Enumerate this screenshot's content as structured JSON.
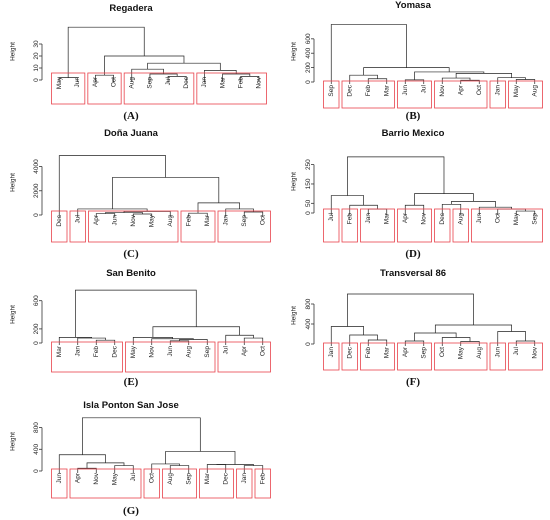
{
  "chart_data": [
    {
      "type": "dendrogram",
      "caption": "(A)",
      "title": "Regadera",
      "ylabel": "Height",
      "yticks": [
        0,
        10,
        20,
        30
      ],
      "ylim": [
        0,
        45
      ],
      "leaves": [
        "May",
        "Jun",
        "Apr",
        "Oct",
        "Aug",
        "Sep",
        "Jul",
        "Dec",
        "Jan",
        "Mar",
        "Feb",
        "Nov"
      ],
      "merges": [
        [
          0,
          1,
          2
        ],
        [
          2,
          3,
          4
        ],
        [
          6,
          7,
          3
        ],
        [
          5,
          -3,
          5
        ],
        [
          4,
          -4,
          9
        ],
        [
          10,
          11,
          3
        ],
        [
          9,
          -6,
          5
        ],
        [
          8,
          -7,
          8
        ],
        [
          -5,
          -8,
          14
        ],
        [
          -2,
          -9,
          20
        ],
        [
          -1,
          -10,
          44
        ]
      ],
      "clusters": [
        [
          0,
          1
        ],
        [
          2,
          3
        ],
        [
          4,
          7
        ],
        [
          8,
          11
        ]
      ]
    },
    {
      "type": "dendrogram",
      "caption": "(B)",
      "title": "Yomasa",
      "ylabel": "Height",
      "yticks": [
        0,
        200,
        400,
        600
      ],
      "ylim": [
        0,
        820
      ],
      "leaves": [
        "Sep",
        "Dec",
        "Feb",
        "Mar",
        "Jun",
        "Jul",
        "Nov",
        "Apr",
        "Oct",
        "Jan",
        "May",
        "Aug"
      ],
      "merges": [
        [
          2,
          3,
          45
        ],
        [
          1,
          -1,
          95
        ],
        [
          4,
          5,
          30
        ],
        [
          7,
          8,
          25
        ],
        [
          6,
          -4,
          55
        ],
        [
          10,
          11,
          35
        ],
        [
          9,
          -6,
          60
        ],
        [
          -5,
          -7,
          120
        ],
        [
          -3,
          -8,
          140
        ],
        [
          -2,
          -9,
          200
        ],
        [
          0,
          -10,
          800
        ]
      ],
      "clusters": [
        [
          0,
          0
        ],
        [
          1,
          3
        ],
        [
          4,
          5
        ],
        [
          6,
          8
        ],
        [
          9,
          9
        ],
        [
          10,
          11
        ]
      ]
    },
    {
      "type": "dendrogram",
      "caption": "(C)",
      "title": "Doña Juana",
      "ylabel": "Height",
      "yticks": [
        0,
        2000,
        4000
      ],
      "ylim": [
        0,
        5200
      ],
      "leaves": [
        "Dec",
        "Jul",
        "Apr",
        "Jun",
        "Nov",
        "May",
        "Aug",
        "Feb",
        "Mar",
        "Jan",
        "Sep",
        "Oct"
      ],
      "merges": [
        [
          2,
          3,
          120
        ],
        [
          4,
          5,
          80
        ],
        [
          -1,
          -2,
          200
        ],
        [
          -3,
          6,
          300
        ],
        [
          1,
          -4,
          500
        ],
        [
          7,
          8,
          150
        ],
        [
          10,
          11,
          250
        ],
        [
          9,
          -7,
          500
        ],
        [
          -6,
          -8,
          1000
        ],
        [
          -5,
          -9,
          3100
        ],
        [
          0,
          -10,
          4900
        ]
      ],
      "clusters": [
        [
          0,
          0
        ],
        [
          1,
          1
        ],
        [
          2,
          6
        ],
        [
          7,
          8
        ],
        [
          9,
          11
        ]
      ]
    },
    {
      "type": "dendrogram",
      "caption": "(D)",
      "title": "Barrio Mexico",
      "ylabel": "Height",
      "yticks": [
        0,
        50,
        150,
        250
      ],
      "ylim": [
        0,
        310
      ],
      "leaves": [
        "Jul",
        "Feb",
        "Jan",
        "Mar",
        "Apr",
        "Nov",
        "Dec",
        "Aug",
        "Jun",
        "Oct",
        "May",
        "Sep"
      ],
      "merges": [
        [
          2,
          3,
          20
        ],
        [
          1,
          -1,
          40
        ],
        [
          0,
          -2,
          90
        ],
        [
          4,
          5,
          40
        ],
        [
          6,
          7,
          45
        ],
        [
          10,
          11,
          10
        ],
        [
          9,
          -6,
          20
        ],
        [
          8,
          -7,
          30
        ],
        [
          -5,
          -8,
          60
        ],
        [
          -4,
          -9,
          100
        ],
        [
          -3,
          -10,
          290
        ]
      ],
      "clusters": [
        [
          0,
          0
        ],
        [
          1,
          1
        ],
        [
          2,
          3
        ],
        [
          4,
          5
        ],
        [
          6,
          6
        ],
        [
          7,
          7
        ],
        [
          8,
          11
        ]
      ]
    },
    {
      "type": "dendrogram",
      "caption": "(E)",
      "title": "San Benito",
      "ylabel": "Height",
      "yticks": [
        0,
        200,
        600
      ],
      "ylim": [
        0,
        780
      ],
      "leaves": [
        "Mar",
        "Jan",
        "Feb",
        "Dec",
        "May",
        "Nov",
        "Jun",
        "Aug",
        "Sep",
        "Jul",
        "Apr",
        "Oct"
      ],
      "merges": [
        [
          2,
          3,
          40
        ],
        [
          1,
          -1,
          70
        ],
        [
          0,
          -2,
          80
        ],
        [
          6,
          7,
          30
        ],
        [
          -4,
          8,
          50
        ],
        [
          5,
          -5,
          60
        ],
        [
          4,
          -6,
          80
        ],
        [
          10,
          11,
          70
        ],
        [
          9,
          -8,
          110
        ],
        [
          -7,
          -9,
          230
        ],
        [
          -3,
          -10,
          750
        ]
      ],
      "clusters": [
        [
          0,
          3
        ],
        [
          4,
          8
        ],
        [
          9,
          11
        ]
      ]
    },
    {
      "type": "dendrogram",
      "caption": "(F)",
      "title": "Transversal 86",
      "ylabel": "Height",
      "yticks": [
        0,
        400,
        800
      ],
      "ylim": [
        0,
        1100
      ],
      "leaves": [
        "Jan",
        "Dec",
        "Feb",
        "Mar",
        "Apr",
        "Sep",
        "Oct",
        "May",
        "Aug",
        "Jun",
        "Jul",
        "Nov"
      ],
      "merges": [
        [
          2,
          3,
          80
        ],
        [
          1,
          -1,
          180
        ],
        [
          0,
          -2,
          350
        ],
        [
          4,
          5,
          60
        ],
        [
          7,
          8,
          50
        ],
        [
          6,
          -5,
          130
        ],
        [
          -4,
          -6,
          220
        ],
        [
          10,
          11,
          60
        ],
        [
          9,
          -8,
          250
        ],
        [
          -7,
          -9,
          380
        ],
        [
          -3,
          -10,
          1000
        ]
      ],
      "clusters": [
        [
          0,
          0
        ],
        [
          1,
          1
        ],
        [
          2,
          3
        ],
        [
          4,
          5
        ],
        [
          6,
          8
        ],
        [
          9,
          9
        ],
        [
          10,
          11
        ]
      ]
    },
    {
      "type": "dendrogram",
      "caption": "(G)",
      "title": "Isla Ponton San Jose",
      "ylabel": "Height",
      "yticks": [
        0,
        400,
        800
      ],
      "ylim": [
        0,
        1050
      ],
      "leaves": [
        "Jun",
        "Apr",
        "Nov",
        "May",
        "Jul",
        "Oct",
        "Aug",
        "Sep",
        "Mar",
        "Dec",
        "Jan",
        "Feb"
      ],
      "merges": [
        [
          1,
          2,
          50
        ],
        [
          3,
          4,
          100
        ],
        [
          -1,
          -2,
          150
        ],
        [
          0,
          -3,
          300
        ],
        [
          6,
          7,
          100
        ],
        [
          5,
          -5,
          130
        ],
        [
          8,
          9,
          120
        ],
        [
          10,
          11,
          100
        ],
        [
          -7,
          -8,
          120
        ],
        [
          -6,
          -9,
          360
        ],
        [
          -4,
          -10,
          980
        ]
      ],
      "clusters": [
        [
          0,
          0
        ],
        [
          1,
          4
        ],
        [
          5,
          5
        ],
        [
          6,
          7
        ],
        [
          8,
          9
        ],
        [
          10,
          10
        ],
        [
          11,
          11
        ]
      ]
    }
  ]
}
